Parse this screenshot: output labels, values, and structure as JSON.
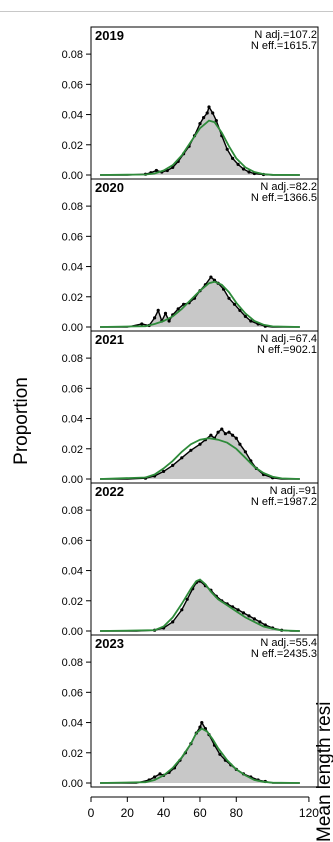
{
  "chart_data": {
    "type": "area",
    "ylabel": "Proportion",
    "right_label": "Mean length resi",
    "xlim": [
      0,
      125
    ],
    "ylim": [
      0,
      0.09
    ],
    "x_ticks": [
      0,
      20,
      40,
      60,
      80,
      120
    ],
    "y_ticks": [
      "0.00",
      "0.02",
      "0.04",
      "0.06",
      "0.08"
    ],
    "colors": {
      "fill": "#c8c8c8",
      "observed": "#000000",
      "expected": "#2e8b3a"
    },
    "panels": [
      {
        "year": "2019",
        "n_adj": "N adj.=107.2",
        "n_eff": "N eff.=1615.7",
        "observed": [
          [
            5,
            0
          ],
          [
            20,
            0
          ],
          [
            30,
            0.0005
          ],
          [
            33,
            0.0015
          ],
          [
            36,
            0.003
          ],
          [
            39,
            0.002
          ],
          [
            42,
            0.003
          ],
          [
            45,
            0.005
          ],
          [
            48,
            0.009
          ],
          [
            51,
            0.014
          ],
          [
            54,
            0.019
          ],
          [
            57,
            0.026
          ],
          [
            60,
            0.034
          ],
          [
            62,
            0.038
          ],
          [
            64,
            0.041
          ],
          [
            65,
            0.045
          ],
          [
            67,
            0.041
          ],
          [
            69,
            0.036
          ],
          [
            72,
            0.026
          ],
          [
            75,
            0.017
          ],
          [
            78,
            0.011
          ],
          [
            81,
            0.007
          ],
          [
            84,
            0.004
          ],
          [
            87,
            0.002
          ],
          [
            90,
            0.001
          ],
          [
            95,
            0.0003
          ],
          [
            100,
            0
          ],
          [
            115,
            0
          ]
        ],
        "expected": [
          [
            5,
            0
          ],
          [
            30,
            0.0003
          ],
          [
            35,
            0.001
          ],
          [
            40,
            0.003
          ],
          [
            45,
            0.0065
          ],
          [
            50,
            0.013
          ],
          [
            55,
            0.022
          ],
          [
            60,
            0.031
          ],
          [
            65,
            0.036
          ],
          [
            68,
            0.035
          ],
          [
            72,
            0.028
          ],
          [
            76,
            0.019
          ],
          [
            80,
            0.011
          ],
          [
            85,
            0.005
          ],
          [
            90,
            0.002
          ],
          [
            95,
            0.0006
          ],
          [
            100,
            0.0001
          ],
          [
            115,
            0
          ]
        ]
      },
      {
        "year": "2020",
        "n_adj": "N adj.=82.2",
        "n_eff": "N eff.=1366.5",
        "observed": [
          [
            5,
            0
          ],
          [
            20,
            0
          ],
          [
            28,
            0.002
          ],
          [
            32,
            0.001
          ],
          [
            35,
            0.006
          ],
          [
            37,
            0.011
          ],
          [
            39,
            0.004
          ],
          [
            41,
            0.009
          ],
          [
            43,
            0.004
          ],
          [
            45,
            0.008
          ],
          [
            48,
            0.012
          ],
          [
            51,
            0.015
          ],
          [
            54,
            0.016
          ],
          [
            57,
            0.019
          ],
          [
            60,
            0.024
          ],
          [
            63,
            0.028
          ],
          [
            66,
            0.033
          ],
          [
            68,
            0.031
          ],
          [
            70,
            0.029
          ],
          [
            73,
            0.025
          ],
          [
            76,
            0.019
          ],
          [
            79,
            0.015
          ],
          [
            82,
            0.011
          ],
          [
            85,
            0.007
          ],
          [
            88,
            0.004
          ],
          [
            92,
            0.002
          ],
          [
            96,
            0.0005
          ],
          [
            100,
            0
          ],
          [
            115,
            0
          ]
        ],
        "expected": [
          [
            5,
            0
          ],
          [
            30,
            0.0005
          ],
          [
            35,
            0.002
          ],
          [
            40,
            0.004
          ],
          [
            45,
            0.007
          ],
          [
            50,
            0.012
          ],
          [
            55,
            0.018
          ],
          [
            60,
            0.024
          ],
          [
            65,
            0.029
          ],
          [
            68,
            0.03
          ],
          [
            72,
            0.028
          ],
          [
            76,
            0.023
          ],
          [
            80,
            0.016
          ],
          [
            85,
            0.009
          ],
          [
            90,
            0.004
          ],
          [
            95,
            0.0015
          ],
          [
            100,
            0.0004
          ],
          [
            115,
            0
          ]
        ]
      },
      {
        "year": "2021",
        "n_adj": "N adj.=67.4",
        "n_eff": "N eff.=902.1",
        "observed": [
          [
            5,
            0
          ],
          [
            20,
            0
          ],
          [
            30,
            0.0005
          ],
          [
            35,
            0.002
          ],
          [
            40,
            0.005
          ],
          [
            45,
            0.009
          ],
          [
            50,
            0.014
          ],
          [
            55,
            0.019
          ],
          [
            60,
            0.023
          ],
          [
            63,
            0.026
          ],
          [
            66,
            0.029
          ],
          [
            68,
            0.027
          ],
          [
            70,
            0.031
          ],
          [
            72,
            0.033
          ],
          [
            74,
            0.03
          ],
          [
            76,
            0.031
          ],
          [
            78,
            0.029
          ],
          [
            80,
            0.027
          ],
          [
            82,
            0.023
          ],
          [
            85,
            0.018
          ],
          [
            88,
            0.012
          ],
          [
            91,
            0.007
          ],
          [
            95,
            0.003
          ],
          [
            100,
            0.0008
          ],
          [
            105,
            0
          ],
          [
            115,
            0
          ]
        ],
        "expected": [
          [
            5,
            0
          ],
          [
            30,
            0.001
          ],
          [
            35,
            0.003
          ],
          [
            40,
            0.007
          ],
          [
            45,
            0.012
          ],
          [
            50,
            0.018
          ],
          [
            55,
            0.023
          ],
          [
            60,
            0.026
          ],
          [
            65,
            0.027
          ],
          [
            70,
            0.026
          ],
          [
            75,
            0.024
          ],
          [
            80,
            0.02
          ],
          [
            85,
            0.014
          ],
          [
            90,
            0.008
          ],
          [
            95,
            0.004
          ],
          [
            100,
            0.0015
          ],
          [
            105,
            0.0004
          ],
          [
            115,
            0
          ]
        ]
      },
      {
        "year": "2022",
        "n_adj": "N adj.=91",
        "n_eff": "N eff.=1987.2",
        "observed": [
          [
            5,
            0
          ],
          [
            25,
            0
          ],
          [
            35,
            0.0005
          ],
          [
            40,
            0.002
          ],
          [
            45,
            0.006
          ],
          [
            50,
            0.014
          ],
          [
            53,
            0.021
          ],
          [
            56,
            0.028
          ],
          [
            58,
            0.032
          ],
          [
            60,
            0.033
          ],
          [
            63,
            0.03
          ],
          [
            66,
            0.027
          ],
          [
            69,
            0.023
          ],
          [
            72,
            0.02
          ],
          [
            75,
            0.018
          ],
          [
            78,
            0.016
          ],
          [
            81,
            0.014
          ],
          [
            84,
            0.012
          ],
          [
            87,
            0.01
          ],
          [
            90,
            0.008
          ],
          [
            93,
            0.006
          ],
          [
            96,
            0.004
          ],
          [
            100,
            0.002
          ],
          [
            105,
            0.0005
          ],
          [
            110,
            0
          ],
          [
            115,
            0
          ]
        ],
        "expected": [
          [
            5,
            0
          ],
          [
            35,
            0.0005
          ],
          [
            40,
            0.003
          ],
          [
            45,
            0.009
          ],
          [
            50,
            0.018
          ],
          [
            55,
            0.028
          ],
          [
            58,
            0.033
          ],
          [
            60,
            0.034
          ],
          [
            63,
            0.031
          ],
          [
            66,
            0.026
          ],
          [
            70,
            0.021
          ],
          [
            75,
            0.017
          ],
          [
            80,
            0.013
          ],
          [
            85,
            0.009
          ],
          [
            90,
            0.006
          ],
          [
            95,
            0.003
          ],
          [
            100,
            0.0015
          ],
          [
            105,
            0.0004
          ],
          [
            115,
            0
          ]
        ]
      },
      {
        "year": "2023",
        "n_adj": "N adj.=55.4",
        "n_eff": "N eff.=2435.3",
        "observed": [
          [
            5,
            0
          ],
          [
            25,
            0
          ],
          [
            32,
            0.002
          ],
          [
            35,
            0.004
          ],
          [
            38,
            0.006
          ],
          [
            40,
            0.005
          ],
          [
            43,
            0.007
          ],
          [
            46,
            0.01
          ],
          [
            49,
            0.015
          ],
          [
            52,
            0.02
          ],
          [
            55,
            0.026
          ],
          [
            58,
            0.033
          ],
          [
            60,
            0.037
          ],
          [
            61,
            0.04
          ],
          [
            63,
            0.036
          ],
          [
            65,
            0.032
          ],
          [
            68,
            0.025
          ],
          [
            71,
            0.019
          ],
          [
            74,
            0.015
          ],
          [
            77,
            0.012
          ],
          [
            80,
            0.009
          ],
          [
            84,
            0.006
          ],
          [
            88,
            0.004
          ],
          [
            92,
            0.002
          ],
          [
            96,
            0.001
          ],
          [
            100,
            0
          ],
          [
            115,
            0
          ]
        ],
        "expected": [
          [
            5,
            0
          ],
          [
            30,
            0.0005
          ],
          [
            35,
            0.002
          ],
          [
            40,
            0.005
          ],
          [
            45,
            0.01
          ],
          [
            50,
            0.017
          ],
          [
            55,
            0.026
          ],
          [
            58,
            0.033
          ],
          [
            61,
            0.036
          ],
          [
            64,
            0.034
          ],
          [
            67,
            0.029
          ],
          [
            70,
            0.023
          ],
          [
            75,
            0.015
          ],
          [
            80,
            0.009
          ],
          [
            85,
            0.005
          ],
          [
            90,
            0.002
          ],
          [
            95,
            0.0008
          ],
          [
            100,
            0.0002
          ],
          [
            115,
            0
          ]
        ]
      }
    ]
  }
}
